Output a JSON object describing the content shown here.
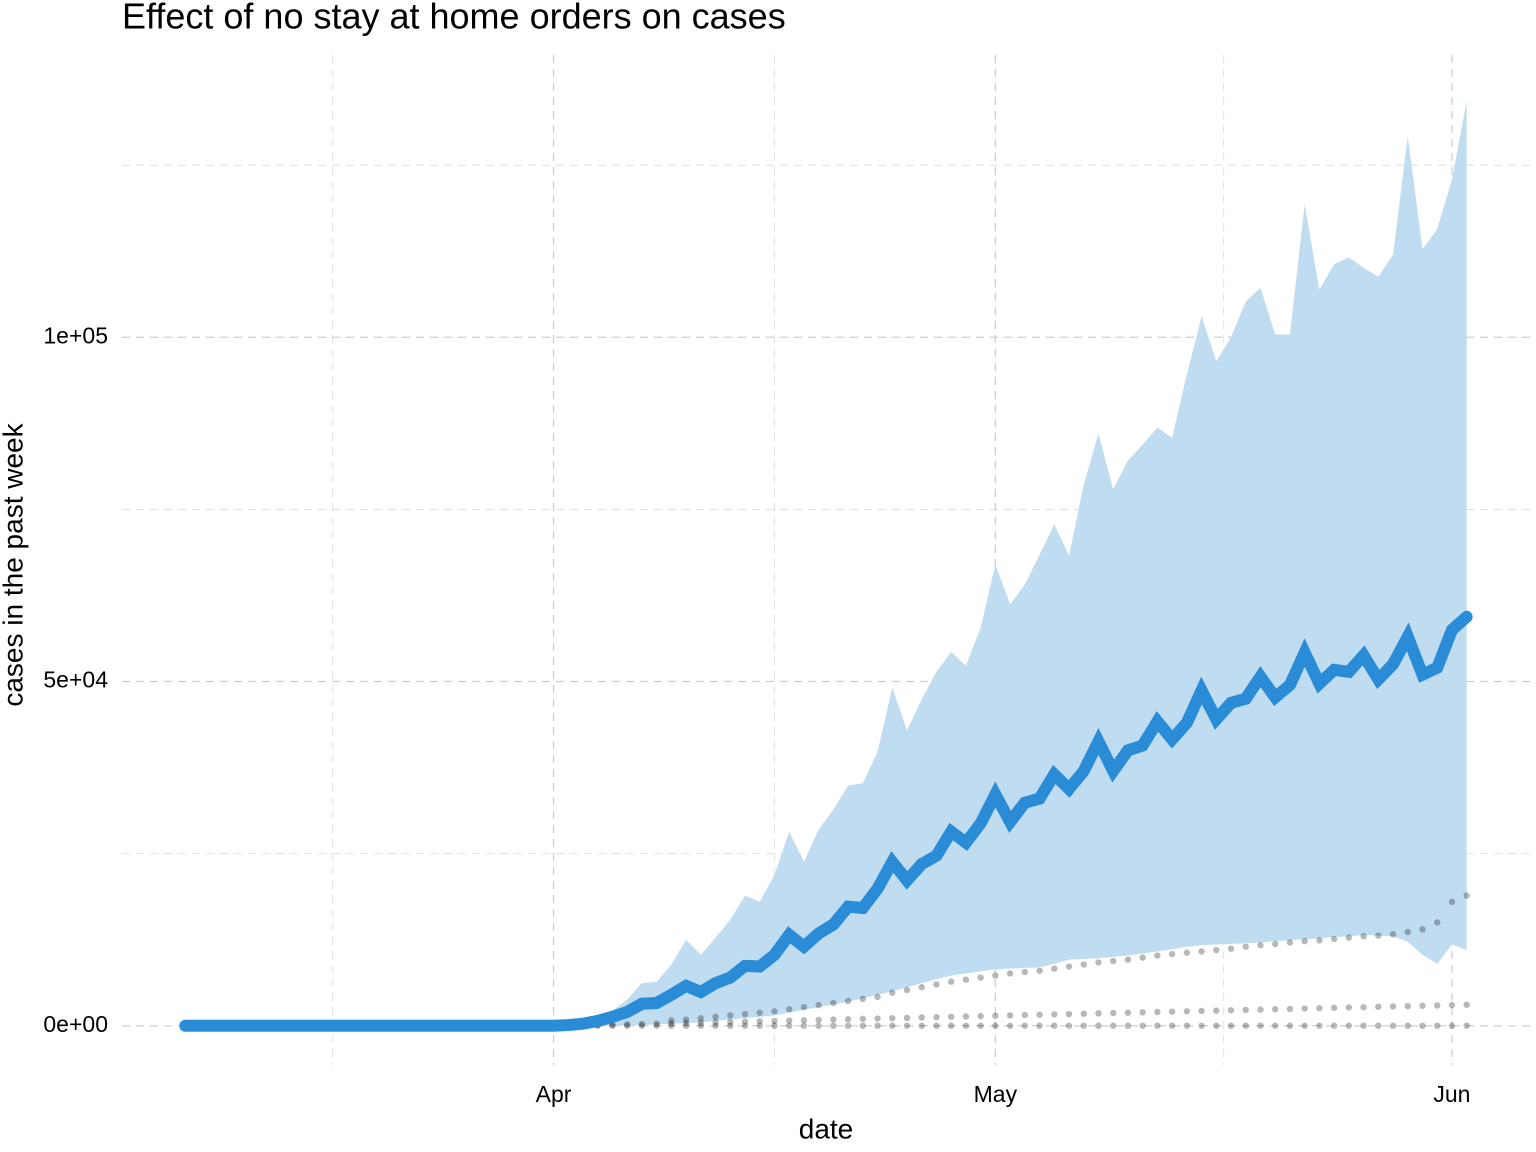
{
  "chart_data": {
    "type": "line",
    "title": "Effect of no stay at home orders on cases",
    "x_label": "date",
    "y_label": "cases in the past week",
    "x": [
      0,
      1,
      2,
      3,
      4,
      5,
      6,
      7,
      8,
      9,
      10,
      11,
      12,
      13,
      14,
      15,
      16,
      17,
      18,
      19,
      20,
      21,
      22,
      23,
      24,
      25,
      26,
      27,
      28,
      29,
      30,
      31,
      32,
      33,
      34,
      35,
      36,
      37,
      38,
      39,
      40,
      41,
      42,
      43,
      44,
      45,
      46,
      47,
      48,
      49,
      50,
      51,
      52,
      53,
      54,
      55,
      56,
      57,
      58,
      59,
      60,
      61,
      62,
      63,
      64,
      65,
      66,
      67,
      68,
      69,
      70,
      71,
      72,
      73,
      74,
      75,
      76,
      77,
      78,
      79,
      80,
      81,
      82,
      83,
      84,
      85,
      86,
      87
    ],
    "xlim": [
      -4.3,
      91.3
    ],
    "ylim": [
      -5700,
      141000
    ],
    "xticks": [
      {
        "value": 25,
        "label": "Apr"
      },
      {
        "value": 55,
        "label": "May"
      },
      {
        "value": 86,
        "label": "Jun"
      }
    ],
    "xminor": [
      10,
      40,
      70.5
    ],
    "yticks": [
      {
        "value": 0,
        "label": "0e+00"
      },
      {
        "value": 50000,
        "label": "5e+04"
      },
      {
        "value": 100000,
        "label": "1e+05"
      }
    ],
    "yminor": [
      25000,
      75000,
      125000
    ],
    "grid": true,
    "series": [
      {
        "color": "#2a8bd7",
        "values": [
          0,
          0,
          0,
          0,
          0,
          0,
          0,
          0,
          0,
          0,
          0,
          0,
          0,
          0,
          0,
          0,
          0,
          0,
          0,
          0,
          0,
          0,
          0,
          0,
          0,
          0,
          100,
          300,
          700,
          1300,
          2000,
          3200,
          3300,
          4500,
          5800,
          4900,
          6200,
          7000,
          8700,
          8600,
          10300,
          13200,
          11500,
          13400,
          14700,
          17300,
          17100,
          19900,
          23800,
          21100,
          23500,
          24700,
          28200,
          26600,
          29400,
          33600,
          29600,
          32400,
          33000,
          36500,
          34400,
          37000,
          41300,
          37000,
          40000,
          40700,
          44200,
          41600,
          44000,
          48700,
          44500,
          46900,
          47500,
          50700,
          47700,
          49500,
          54200,
          49700,
          51700,
          51400,
          53800,
          50300,
          52500,
          56500,
          51000,
          52000,
          57500,
          59400
        ]
      }
    ],
    "band": {
      "color": "#bfdcf1",
      "upper": [
        0,
        0,
        0,
        0,
        0,
        0,
        0,
        0,
        0,
        0,
        0,
        0,
        0,
        0,
        0,
        0,
        0,
        0,
        0,
        0,
        0,
        0,
        0,
        0,
        0,
        0,
        200,
        500,
        1200,
        2200,
        3800,
        6200,
        6400,
        8900,
        12500,
        10300,
        12800,
        15400,
        18900,
        18000,
        21900,
        28200,
        23800,
        28500,
        31400,
        34900,
        35200,
        39800,
        49100,
        42900,
        47400,
        51400,
        54300,
        52300,
        57800,
        67000,
        61200,
        64100,
        68400,
        72800,
        68300,
        78600,
        86000,
        77900,
        82100,
        84400,
        86900,
        85400,
        94600,
        103000,
        96500,
        100000,
        105200,
        107200,
        100400,
        100400,
        119300,
        106900,
        110600,
        111600,
        110100,
        108800,
        112000,
        129200,
        112800,
        115700,
        122900,
        134300
      ],
      "lower": [
        0,
        0,
        0,
        0,
        0,
        0,
        0,
        0,
        0,
        0,
        0,
        0,
        0,
        0,
        0,
        0,
        0,
        0,
        0,
        0,
        0,
        0,
        0,
        0,
        0,
        0,
        0,
        0,
        0,
        0,
        0,
        100,
        200,
        300,
        400,
        500,
        700,
        900,
        1100,
        1300,
        1500,
        1900,
        2300,
        2700,
        3100,
        3500,
        4000,
        4500,
        5000,
        5600,
        6200,
        6800,
        7300,
        7600,
        7900,
        8200,
        8300,
        8400,
        8500,
        9000,
        9600,
        9700,
        9800,
        10000,
        10200,
        10500,
        10800,
        11100,
        11500,
        11700,
        11800,
        11900,
        12000,
        12100,
        12300,
        12400,
        12600,
        12700,
        12900,
        13000,
        13200,
        13100,
        13000,
        12200,
        10300,
        9000,
        11800,
        11000
      ]
    },
    "points": {
      "color": "#000000",
      "series": [
        [
          0,
          null,
          null,
          null,
          null,
          null,
          null,
          null,
          null,
          null,
          null,
          null,
          null,
          null,
          null,
          null,
          null,
          null,
          null,
          null,
          null,
          null,
          null,
          null,
          null,
          null,
          null,
          null,
          0,
          0,
          0,
          0,
          0,
          0,
          0,
          0,
          0,
          0,
          0,
          0,
          0,
          0,
          0,
          0,
          0,
          0,
          0,
          0,
          0,
          0,
          0,
          0,
          0,
          0,
          0,
          0,
          0,
          0,
          0,
          0,
          0,
          0,
          0,
          0,
          0,
          0,
          0,
          0,
          0,
          0,
          0,
          0,
          0,
          0,
          0,
          0,
          0,
          0,
          0,
          0,
          0,
          0,
          0,
          0,
          0,
          0,
          0,
          0
        ],
        [
          null,
          null,
          null,
          null,
          null,
          null,
          null,
          null,
          null,
          null,
          null,
          null,
          null,
          null,
          null,
          null,
          null,
          null,
          null,
          null,
          null,
          null,
          null,
          null,
          null,
          null,
          null,
          null,
          100,
          150,
          200,
          250,
          300,
          350,
          400,
          450,
          500,
          550,
          600,
          650,
          700,
          750,
          800,
          850,
          900,
          950,
          1000,
          1050,
          1100,
          1150,
          1200,
          1250,
          1300,
          1350,
          1400,
          1450,
          1500,
          1550,
          1600,
          1650,
          1700,
          1750,
          1800,
          1850,
          1900,
          1950,
          2000,
          2050,
          2100,
          2150,
          2200,
          2250,
          2300,
          2350,
          2400,
          2450,
          2500,
          2550,
          2600,
          2650,
          2700,
          2750,
          2800,
          2850,
          2900,
          2950,
          3000,
          3050
        ],
        [
          null,
          null,
          null,
          null,
          null,
          null,
          null,
          null,
          null,
          null,
          null,
          null,
          null,
          null,
          null,
          null,
          null,
          null,
          null,
          null,
          null,
          null,
          null,
          null,
          null,
          null,
          null,
          null,
          null,
          null,
          null,
          null,
          null,
          800,
          900,
          1100,
          1300,
          1500,
          1700,
          1900,
          2100,
          2400,
          2700,
          3000,
          3300,
          3600,
          3900,
          4200,
          4800,
          5200,
          5600,
          6000,
          6400,
          6700,
          7000,
          7300,
          7600,
          7800,
          8000,
          8300,
          8600,
          8900,
          9200,
          9400,
          9600,
          9900,
          10200,
          10400,
          10600,
          10800,
          11000,
          11200,
          11500,
          11700,
          11900,
          12100,
          12300,
          12400,
          12600,
          12800,
          13000,
          13100,
          13300,
          13600,
          14000,
          15000,
          18000,
          18900
        ]
      ]
    }
  }
}
